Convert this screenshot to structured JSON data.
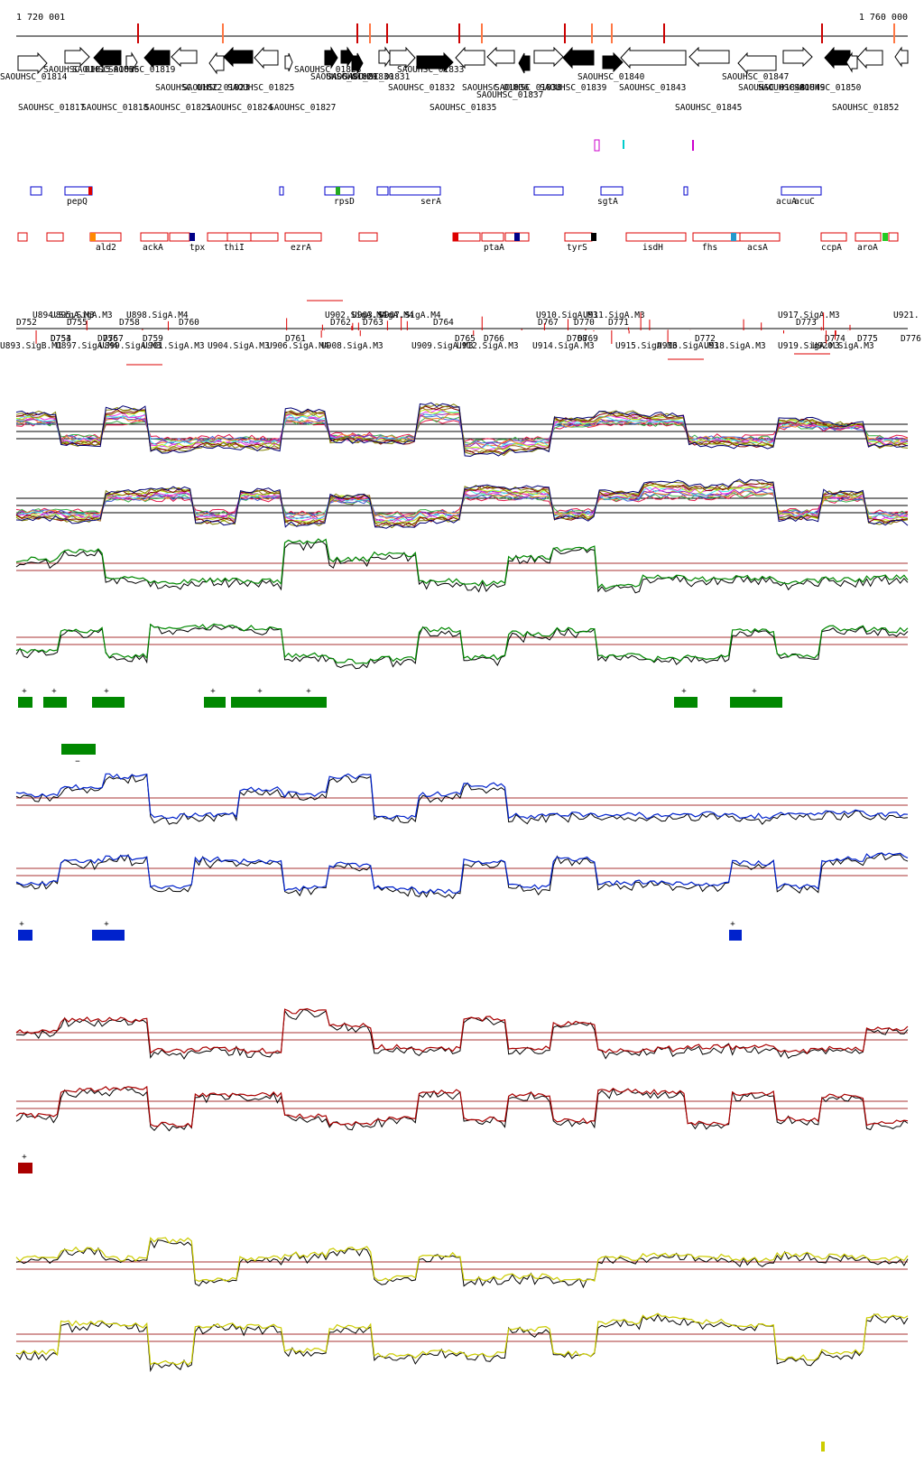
{
  "ruler": {
    "start_label": "1 720 001",
    "end_label": "1 760 000"
  },
  "colors": {
    "axis": "#000000",
    "gene_fill": "#000000",
    "gene_outline": "#000000",
    "tick_red": "#cc0000",
    "tick_orange": "#ff7744",
    "blue_box": "#0000cc",
    "red_box": "#dd0000",
    "green": "#008800",
    "blue": "#0022cc",
    "dark_red": "#aa0000",
    "yellow": "#cccc00",
    "magenta": "#cc00cc",
    "cyan": "#00cccc",
    "threshold": "#aa3333"
  },
  "genes_row1": [
    "SAOUHSC_01814",
    "SAOUHSC_01815",
    "SAOUHSC_01816",
    "SAOUHSC_01819",
    "SAOUHSC_01822",
    "SAOUHSC_01823",
    "SAOUHSC_01825",
    "SAOUHSC_01828",
    "SAOUHSC_01829",
    "SAOUHSC_01830",
    "SAOUHSC_01831",
    "SAOUHSC_01832",
    "SAOUHSC_01833",
    "SAOUHSC_01836",
    "SAOUHSC_01837",
    "SAOUHSC_01838",
    "SAOUHSC_01839",
    "SAOUHSC_01840",
    "SAOUHSC_01843",
    "SAOUHSC_01847",
    "SAOUHSC_01848",
    "SAOUHSC_01849",
    "SAOUHSC_01850"
  ],
  "genes_row2": [
    "SAOUHSC_01817",
    "SAOUHSC_01818",
    "SAOUHSC_01821",
    "SAOUHSC_01824",
    "SAOUHSC_01827",
    "SAOUHSC_01835",
    "SAOUHSC_01845",
    "SAOUHSC_01852"
  ],
  "blue_features": [
    "pepQ",
    "rpsD",
    "serA",
    "sgtA",
    "acuA",
    "acuC"
  ],
  "red_features": [
    "ald2",
    "ackA",
    "tpx",
    "thiI",
    "ezrA",
    "ptaA",
    "tyrS",
    "isdH",
    "fhs",
    "acsA",
    "ccpA",
    "aroA"
  ],
  "upstream_labels": [
    "U894.SigA.M3",
    "U895.SigA.M3",
    "U898.SigA.M4",
    "U902.SigA.M4",
    "U903.SigA.M4",
    "U907.SigA.M4",
    "U910.SigA.M3",
    "U911.SigA.M3",
    "U917.SigA.M3",
    "U921.",
    "U893.SigB.M1",
    "U897.SigA.M4",
    "U899.SigA.M3",
    "U901.SigA.M3",
    "U904.SigA.M3",
    "U906.SigA.M4",
    "U908.SigA.M3",
    "U909.SigA.M3",
    "U912.SigA.M3",
    "U914.SigA.M3",
    "U915.SigA.M3",
    "U916.SigA.M3",
    "U918.SigA.M3",
    "U919.SigA.M3",
    "U920.SigA.M3"
  ],
  "d_labels": [
    "D752",
    "D753",
    "D754",
    "D755",
    "D756",
    "D757",
    "D758",
    "D759",
    "D760",
    "D761",
    "D762",
    "D763",
    "D764",
    "D765",
    "D766",
    "D767",
    "D768",
    "D769",
    "D770",
    "D771",
    "D772",
    "D773",
    "D774",
    "D775",
    "D776"
  ],
  "plus_marker": "+",
  "minus_marker": "−"
}
